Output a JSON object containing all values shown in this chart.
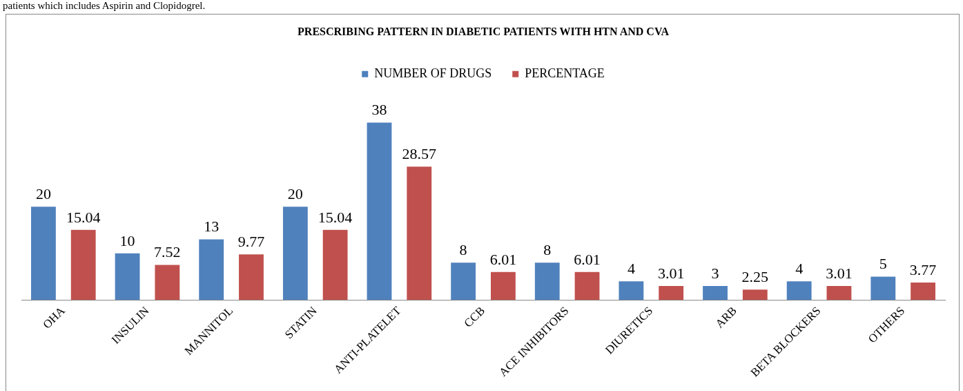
{
  "chart_data": {
    "type": "bar",
    "title": "PRESCRIBING PATTERN IN DIABETIC PATIENTS WITH HTN AND CVA",
    "categories": [
      "OHA",
      "INSULIN",
      "MANNITOL",
      "STATIN",
      "ANTI-PLATELET",
      "CCB",
      "ACE INHIBITORS",
      "DIURETICS",
      "ARB",
      "BETA BLOCKERS",
      "OTHERS"
    ],
    "series": [
      {
        "name": "NUMBER OF DRUGS",
        "color": "#4f81bd",
        "values": [
          20,
          10,
          13,
          20,
          38,
          8,
          8,
          4,
          3,
          4,
          5
        ]
      },
      {
        "name": "PERCENTAGE",
        "color": "#c0504d",
        "values": [
          15.04,
          7.52,
          9.77,
          15.04,
          28.57,
          6.01,
          6.01,
          3.01,
          2.25,
          3.01,
          3.77
        ]
      }
    ],
    "data_labels": true,
    "legend": "top",
    "grid": false,
    "annotations": [
      "patients which includes Aspirin and Clopidogrel."
    ]
  }
}
